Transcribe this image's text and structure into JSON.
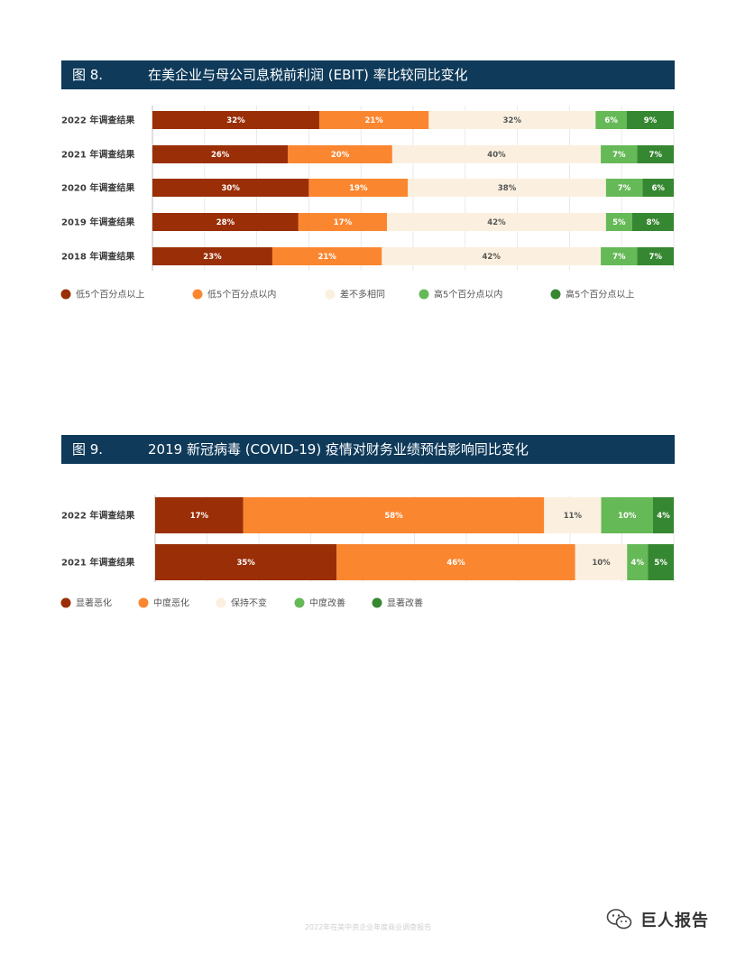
{
  "fig8": {
    "number": "图 8.",
    "title": "在美企业与母公司息税前利润 (EBIT) 率比较同比变化"
  },
  "fig9": {
    "number": "图 9.",
    "title": "2019 新冠病毒 (COVID-19) 疫情对财务业绩预估影响同比变化"
  },
  "chart_data": [
    {
      "type": "bar",
      "orientation": "horizontal-stacked-100",
      "categories": [
        "2022 年调查结果",
        "2021 年调查结果",
        "2020 年调查结果",
        "2019 年调查结果",
        "2018 年调查结果"
      ],
      "series": [
        {
          "name": "低5个百分点以上",
          "color": "#9a2e06",
          "values": [
            32,
            26,
            30,
            28,
            23
          ]
        },
        {
          "name": "低5个百分点以内",
          "color": "#fb8630",
          "values": [
            21,
            20,
            19,
            17,
            21
          ]
        },
        {
          "name": "差不多相同",
          "color": "#fbf0df",
          "values": [
            32,
            40,
            38,
            42,
            42
          ]
        },
        {
          "name": "高5个百分点以内",
          "color": "#66b957",
          "values": [
            6,
            7,
            7,
            5,
            7
          ]
        },
        {
          "name": "高5个百分点以上",
          "color": "#368731",
          "values": [
            9,
            7,
            6,
            8,
            7
          ]
        }
      ],
      "xlim": [
        0,
        100
      ],
      "grid": true,
      "legend": "bottom"
    },
    {
      "type": "bar",
      "orientation": "horizontal-stacked-100",
      "categories": [
        "2022 年调查结果",
        "2021 年调查结果"
      ],
      "series": [
        {
          "name": "显著恶化",
          "color": "#9a2e06",
          "values": [
            17,
            35
          ]
        },
        {
          "name": "中度恶化",
          "color": "#fb8630",
          "values": [
            58,
            46
          ]
        },
        {
          "name": "保持不变",
          "color": "#fbf0df",
          "values": [
            11,
            10
          ]
        },
        {
          "name": "中度改善",
          "color": "#66b957",
          "values": [
            10,
            4
          ]
        },
        {
          "name": "显著改善",
          "color": "#368731",
          "values": [
            4,
            5
          ]
        }
      ],
      "xlim": [
        0,
        100
      ],
      "grid": true,
      "legend": "bottom"
    }
  ],
  "footer": "2022年在美中资企业年度商业调查报告",
  "watermark": {
    "text": "巨人报告",
    "icon": "wechat-icon"
  }
}
